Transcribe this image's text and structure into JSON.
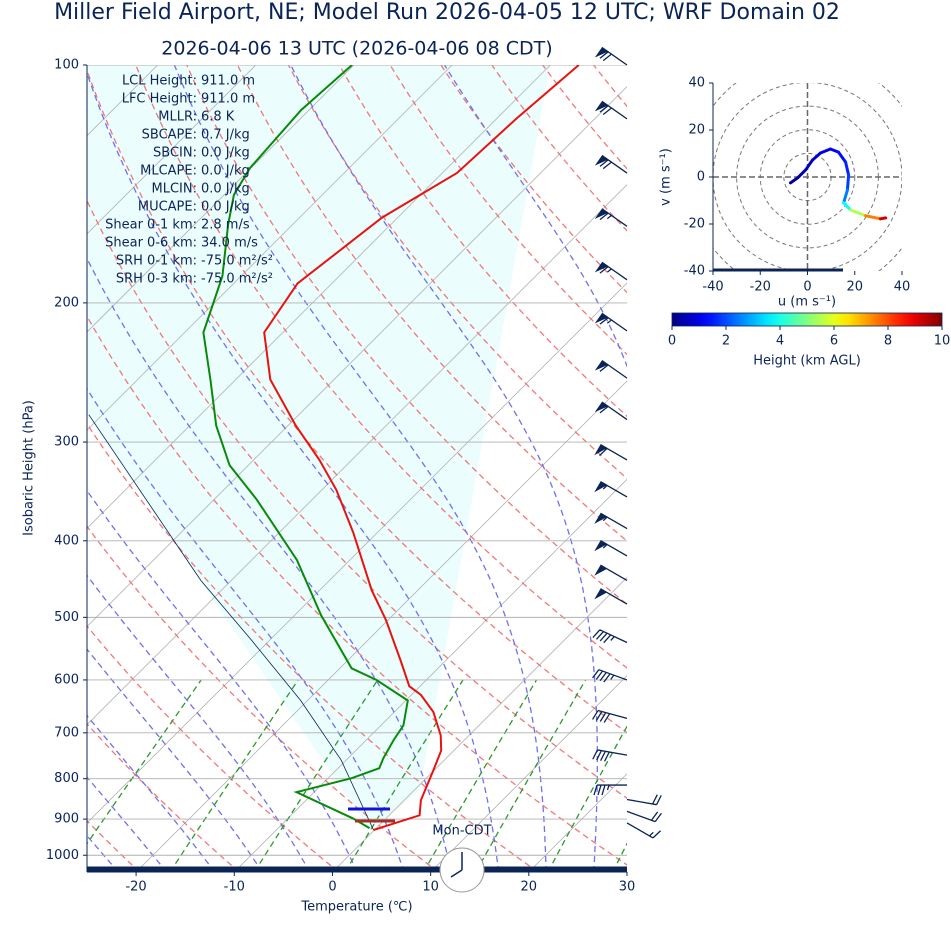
{
  "chart_data": [
    {
      "type": "skewt",
      "title": "Miller Field Airport, NE; Model Run 2026-04-05 12 UTC; WRF Domain 02",
      "subtitle": "2026-04-06 13 UTC  (2026-04-06 08 CDT)",
      "xlabel": "Temperature (℃)",
      "ylabel": "Isobaric Height (hPa)",
      "xlim": [
        -25,
        30
      ],
      "ylim": [
        1050,
        100
      ],
      "log_y": true,
      "skew_deg": 45,
      "grid": true,
      "xticks": [
        -20,
        -10,
        0,
        10,
        20,
        30
      ],
      "yticks": [
        100,
        200,
        300,
        400,
        500,
        600,
        700,
        800,
        900,
        1000
      ],
      "temperature": {
        "color": "#e8130f",
        "pressure": [
          929,
          890,
          852,
          780,
          737,
          705,
          659,
          627,
          611,
          567,
          504,
          462,
          391,
          345,
          316,
          286,
          250,
          218,
          189,
          156,
          137,
          117,
          100
        ],
        "values": [
          -0.1,
          3.1,
          1.7,
          -0.1,
          -1.3,
          -2.9,
          -6.0,
          -9.0,
          -11.1,
          -14.6,
          -20.2,
          -24.7,
          -32.4,
          -38.5,
          -43.3,
          -49.2,
          -56.5,
          -61.9,
          -63.5,
          -61.6,
          -58.5,
          -58.0,
          -57.1
        ]
      },
      "dewpoint": {
        "color": "#0a8a0a",
        "pressure": [
          924,
          898,
          832,
          799,
          776,
          754,
          715,
          685,
          637,
          600,
          580,
          497,
          423,
          355,
          321,
          286,
          250,
          218,
          185,
          159,
          146,
          135,
          114,
          100
        ],
        "values": [
          -0.7,
          -3.4,
          -11.8,
          -7.6,
          -5.8,
          -6.4,
          -7.2,
          -7.7,
          -9.8,
          -15.1,
          -18.8,
          -27.3,
          -35.4,
          -45.6,
          -51.9,
          -57.3,
          -62.6,
          -68.1,
          -71.9,
          -76.6,
          -79.0,
          -80.1,
          -80.8,
          -80.2
        ]
      },
      "parcel": {
        "color": "#0a2456",
        "pressure": [
          929,
          758,
          637,
          534,
          449,
          277
        ],
        "values": [
          -0.1,
          -10.5,
          -20.7,
          -31.9,
          -43.1,
          -71.4
        ]
      },
      "wind_barbs": {
        "color": "#0a2456",
        "pressure": [
          100,
          117,
          137,
          160,
          187,
          217,
          249,
          281,
          316,
          352,
          386,
          418,
          449,
          481,
          538,
          600,
          671,
          747,
          815,
          850,
          880,
          910
        ],
        "speed": [
          70,
          70,
          70,
          65,
          65,
          65,
          60,
          60,
          60,
          55,
          55,
          55,
          50,
          50,
          45,
          45,
          40,
          40,
          35,
          20,
          20,
          15
        ],
        "direction": [
          305,
          305,
          305,
          305,
          305,
          305,
          305,
          305,
          300,
          300,
          300,
          300,
          300,
          300,
          295,
          290,
          285,
          280,
          270,
          100,
          110,
          120
        ]
      },
      "stats": [
        {
          "label": "LCL Height:",
          "value": "911.0 m"
        },
        {
          "label": "LFC Height:",
          "value": "911.0 m"
        },
        {
          "label": "MLLR:",
          "value": "6.8 K"
        },
        {
          "label": "SBCAPE:",
          "value": "0.7 J/kg"
        },
        {
          "label": "SBCIN:",
          "value": "0.0 J/kg"
        },
        {
          "label": "MLCAPE:",
          "value": "0.0 J/kg"
        },
        {
          "label": "MLCIN:",
          "value": "0.0 J/kg"
        },
        {
          "label": "MUCAPE:",
          "value": "0.0 J/kg"
        },
        {
          "label": "Shear 0-1 km:",
          "value": "2.8 m/s"
        },
        {
          "label": "Shear 0-6 km:",
          "value": "34.0 m/s"
        },
        {
          "label": "SRH 0-1 km:",
          "value": "-75.0 m²/s²"
        },
        {
          "label": "SRH 0-3 km:",
          "value": "-75.0 m²/s²"
        }
      ],
      "clock_label": "Mon-CDT"
    },
    {
      "type": "hodograph",
      "xlabel": "u (m s⁻¹)",
      "ylabel": "v (m s⁻¹)",
      "xlim": [
        -40,
        40
      ],
      "ylim": [
        -40,
        40
      ],
      "xticks": [
        -40,
        -20,
        0,
        20,
        40
      ],
      "yticks": [
        -40,
        -20,
        0,
        20,
        40
      ],
      "u": [
        -7.2,
        -4.2,
        -0.8,
        2.1,
        5.5,
        9.7,
        13.1,
        16.1,
        17.4,
        16.9,
        15.3,
        18.2,
        24.6,
        30.9,
        33.1
      ],
      "v": [
        -2.5,
        -0.4,
        3.0,
        7.2,
        10.2,
        11.9,
        10.6,
        6.4,
        0.8,
        -5.5,
        -11.0,
        -14.0,
        -16.5,
        -17.8,
        -17.4
      ],
      "height": [
        0.1,
        0.3,
        0.5,
        0.7,
        0.9,
        1.1,
        1.3,
        1.5,
        1.7,
        2.0,
        3.0,
        4.5,
        6.5,
        8.5,
        9.8
      ],
      "colorbar": {
        "label": "Height (km AGL)",
        "clim": [
          0,
          10
        ],
        "ticks": [
          0,
          2,
          4,
          6,
          8,
          10
        ],
        "cmap": "jet"
      }
    }
  ]
}
